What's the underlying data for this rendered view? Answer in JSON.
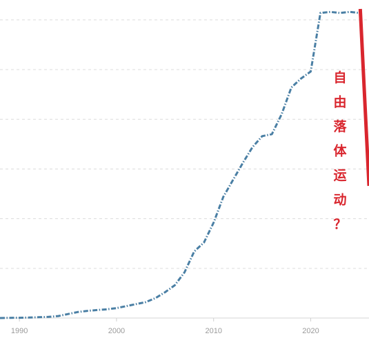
{
  "chart_data": {
    "type": "line",
    "x": [
      1988,
      1989,
      1990,
      1991,
      1992,
      1993,
      1994,
      1995,
      1996,
      1997,
      1998,
      1999,
      2000,
      2001,
      2002,
      2003,
      2004,
      2005,
      2006,
      2007,
      2008,
      2009,
      2010,
      2011,
      2012,
      2013,
      2014,
      2015,
      2016,
      2017,
      2018,
      2019,
      2020,
      2021,
      2022,
      2023,
      2024,
      2025
    ],
    "series": [
      {
        "color": "#4a7fa4",
        "style": "dash-dot",
        "values": [
          0,
          2,
          3,
          5,
          8,
          12,
          20,
          40,
          60,
          72,
          80,
          88,
          100,
          120,
          140,
          160,
          200,
          260,
          330,
          460,
          670,
          760,
          960,
          1220,
          1390,
          1560,
          1720,
          1830,
          1850,
          2050,
          2320,
          2410,
          2480,
          3070,
          3080,
          3070,
          3080,
          3070
        ]
      }
    ],
    "x_ticks": [
      "1990",
      "2000",
      "2010",
      "2020"
    ],
    "xlim": [
      1988,
      2026
    ],
    "ylim": [
      0,
      3200
    ],
    "y_gridlines": [
      500,
      1000,
      1500,
      2000,
      2500,
      3000
    ],
    "grid": "horizontal-dashed",
    "annotation": {
      "text": [
        "自",
        "由",
        "落",
        "体",
        "运",
        "动",
        "？"
      ],
      "color": "#d9262e",
      "line_color": "#d9262e",
      "line_from": [
        2025.1,
        3110
      ],
      "line_to": [
        2026,
        1330
      ]
    }
  }
}
